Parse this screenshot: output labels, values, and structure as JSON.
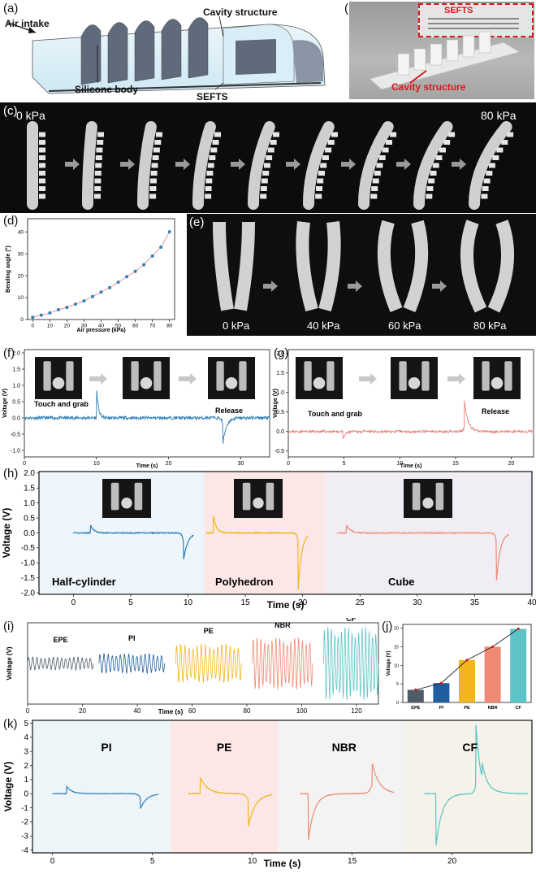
{
  "panel_labels": {
    "a": "(a)",
    "b": "(b)",
    "c": "(c)",
    "d": "(d)",
    "e": "(e)",
    "f": "(f)",
    "g": "(g)",
    "h": "(h)",
    "i": "(i)",
    "j": "(j)",
    "k": "(k)"
  },
  "panel_a": {
    "air_intake": "Air intake",
    "cavity_structure": "Cavity structure",
    "silicone_body": "Silicone body",
    "sefts": "SEFTS"
  },
  "panel_b": {
    "sefts": "SEFTS",
    "cavity_structure": "Cavity structure"
  },
  "panel_c": {
    "start_label": "0 kPa",
    "end_label": "80 kPa"
  },
  "panel_e": {
    "labels": [
      "0 kPa",
      "40 kPa",
      "60 kPa",
      "80 kPa"
    ]
  },
  "colors": {
    "blue": "#2f7fb8",
    "orange": "#e8807a",
    "yellow": "#f2b51c",
    "salmon": "#f08a74",
    "teal": "#5cc4c6",
    "dark_blue": "#1f5fa0",
    "gray": "#4f5b66",
    "red": "#d7191c"
  },
  "chart_data": [
    {
      "id": "d",
      "type": "line",
      "xlabel": "Air pressure (kPa)",
      "ylabel": "Bending angle (°)",
      "x": [
        0,
        5,
        10,
        15,
        20,
        25,
        30,
        35,
        40,
        45,
        50,
        55,
        60,
        65,
        70,
        75,
        80
      ],
      "y": [
        1,
        2,
        3,
        4.5,
        5.5,
        7,
        8.5,
        10.5,
        12.5,
        14.5,
        17,
        19.5,
        22,
        25,
        29,
        33,
        40
      ],
      "xticks": [
        0,
        10,
        20,
        30,
        40,
        50,
        60,
        70,
        80
      ],
      "yticks": [
        0,
        10,
        20,
        30,
        40
      ],
      "xlim": [
        -3,
        83
      ],
      "ylim": [
        0,
        46
      ]
    },
    {
      "id": "f",
      "type": "line",
      "xlabel": "Time (s)",
      "ylabel": "Voltage (V)",
      "annotations": [
        "Touch and grab",
        "Release"
      ],
      "xticks": [
        0,
        10,
        20,
        30
      ],
      "yticks": [
        -1.0,
        -0.5,
        0.0,
        0.5,
        1.0,
        1.5,
        2.0
      ],
      "xlim": [
        0,
        34
      ],
      "ylim": [
        -1.2,
        2.1
      ]
    },
    {
      "id": "g",
      "type": "line",
      "xlabel": "Time (s)",
      "ylabel": "Voltage (V)",
      "annotations": [
        "Touch and grab",
        "Release"
      ],
      "xticks": [
        0,
        5,
        10,
        15,
        20
      ],
      "yticks": [
        -0.5,
        0.0,
        0.5,
        1.0,
        1.5,
        2.0
      ],
      "xlim": [
        0,
        22
      ],
      "ylim": [
        -0.65,
        2.1
      ]
    },
    {
      "id": "h",
      "type": "line",
      "xlabel": "Time (s)",
      "ylabel": "Voltage (V)",
      "regions": [
        "Half-cylinder",
        "Polyhedron",
        "Cube"
      ],
      "xticks": [
        0,
        5,
        10,
        15,
        20,
        25,
        30,
        35,
        40
      ],
      "yticks": [
        -2.0,
        -1.5,
        -1.0,
        -0.5,
        0.0,
        0.5,
        1.0,
        1.5,
        2.0
      ],
      "xlim": [
        -3,
        40
      ],
      "ylim": [
        -2.05,
        2.05
      ]
    },
    {
      "id": "i",
      "type": "line",
      "xlabel": "Time (s)",
      "ylabel": "Voltage (V)",
      "series": [
        {
          "name": "EPE"
        },
        {
          "name": "PI"
        },
        {
          "name": "PE"
        },
        {
          "name": "NBR"
        },
        {
          "name": "CF"
        }
      ],
      "xticks": [
        0,
        20,
        40,
        60,
        80,
        100,
        120
      ],
      "xlim": [
        0,
        128
      ]
    },
    {
      "id": "j",
      "type": "bar",
      "ylabel": "Voltage (V)",
      "categories": [
        "EPE",
        "PI",
        "PE",
        "NBR",
        "CF"
      ],
      "values": [
        3.4,
        5.2,
        11.4,
        15.0,
        19.8
      ],
      "yticks": [
        0,
        5,
        10,
        15,
        20
      ],
      "ylim": [
        0,
        21
      ]
    },
    {
      "id": "k",
      "type": "line",
      "xlabel": "Time (s)",
      "ylabel": "Voltage (V)",
      "regions": [
        "PI",
        "PE",
        "NBR",
        "CF"
      ],
      "xticks": [
        0,
        5,
        10,
        15,
        20
      ],
      "yticks": [
        -4,
        -3,
        -2,
        -1,
        0,
        1,
        2,
        3,
        4,
        5
      ],
      "xlim": [
        -1,
        24
      ],
      "ylim": [
        -4.2,
        5.2
      ]
    }
  ]
}
